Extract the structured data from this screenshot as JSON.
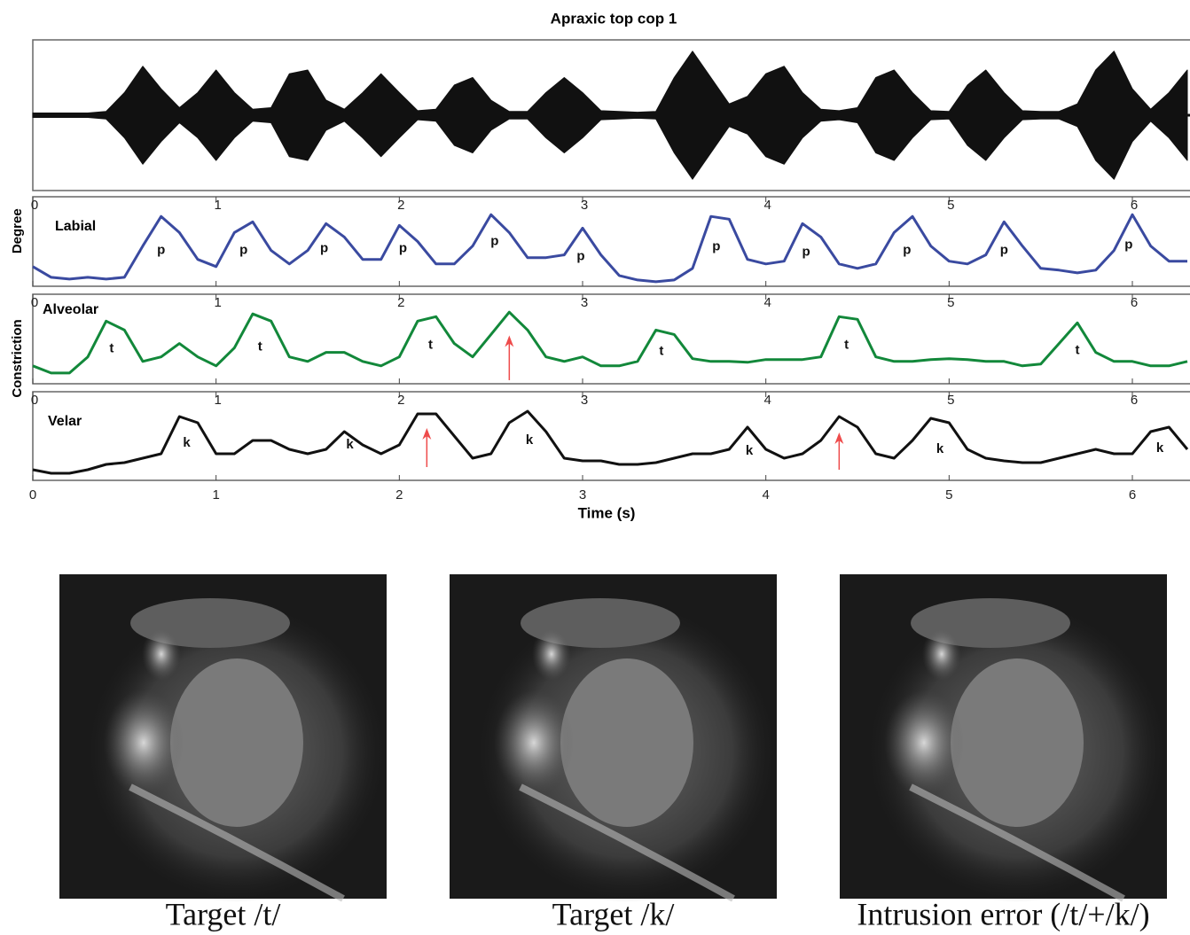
{
  "chart_data": [
    {
      "type": "waveform",
      "title": "Apraxic top cop 1",
      "color": "#111111",
      "xlim": [
        0,
        6.31
      ],
      "ylim": [
        -1,
        1
      ],
      "x": [
        0,
        0.1,
        0.2,
        0.3,
        0.4,
        0.5,
        0.6,
        0.7,
        0.8,
        0.9,
        1,
        1.1,
        1.2,
        1.3,
        1.4,
        1.5,
        1.6,
        1.7,
        1.8,
        1.9,
        2,
        2.1,
        2.2,
        2.3,
        2.4,
        2.5,
        2.6,
        2.7,
        2.8,
        2.9,
        3,
        3.1,
        3.2,
        3.3,
        3.4,
        3.5,
        3.6,
        3.7,
        3.8,
        3.9,
        4,
        4.1,
        4.2,
        4.3,
        4.4,
        4.5,
        4.6,
        4.7,
        4.8,
        4.9,
        5,
        5.1,
        5.2,
        5.3,
        5.4,
        5.5,
        5.6,
        5.7,
        5.8,
        5.9,
        6,
        6.1,
        6.2,
        6.3
      ],
      "values": [
        0.03,
        0.03,
        0.03,
        0.03,
        0.05,
        0.3,
        0.65,
        0.35,
        0.1,
        0.3,
        0.6,
        0.3,
        0.08,
        0.1,
        0.55,
        0.6,
        0.2,
        0.08,
        0.3,
        0.55,
        0.3,
        0.06,
        0.08,
        0.4,
        0.5,
        0.2,
        0.05,
        0.05,
        0.3,
        0.5,
        0.3,
        0.06,
        0.05,
        0.04,
        0.05,
        0.5,
        0.85,
        0.5,
        0.15,
        0.25,
        0.55,
        0.65,
        0.3,
        0.08,
        0.06,
        0.1,
        0.5,
        0.6,
        0.3,
        0.06,
        0.05,
        0.4,
        0.6,
        0.3,
        0.06,
        0.05,
        0.05,
        0.15,
        0.6,
        0.85,
        0.35,
        0.08,
        0.3,
        0.6
      ]
    },
    {
      "type": "line",
      "label": "Labial",
      "color": "#3a4aa0",
      "xlim": [
        0,
        6.31
      ],
      "ylim": [
        0,
        1
      ],
      "xticks": [
        0,
        1,
        2,
        3,
        4,
        5,
        6
      ],
      "x": [
        0,
        0.1,
        0.2,
        0.3,
        0.4,
        0.5,
        0.6,
        0.7,
        0.8,
        0.9,
        1,
        1.1,
        1.2,
        1.3,
        1.4,
        1.5,
        1.6,
        1.7,
        1.8,
        1.9,
        2,
        2.1,
        2.2,
        2.3,
        2.4,
        2.5,
        2.6,
        2.7,
        2.8,
        2.9,
        3,
        3.1,
        3.2,
        3.3,
        3.4,
        3.5,
        3.6,
        3.7,
        3.8,
        3.9,
        4,
        4.1,
        4.2,
        4.3,
        4.4,
        4.5,
        4.6,
        4.7,
        4.8,
        4.9,
        5,
        5.1,
        5.2,
        5.3,
        5.4,
        5.5,
        5.6,
        5.7,
        5.8,
        5.9,
        6,
        6.1,
        6.2,
        6.3
      ],
      "values": [
        0.22,
        0.1,
        0.08,
        0.1,
        0.08,
        0.1,
        0.45,
        0.78,
        0.6,
        0.3,
        0.22,
        0.6,
        0.72,
        0.4,
        0.25,
        0.4,
        0.7,
        0.55,
        0.3,
        0.3,
        0.68,
        0.5,
        0.25,
        0.25,
        0.45,
        0.8,
        0.6,
        0.32,
        0.32,
        0.35,
        0.65,
        0.35,
        0.12,
        0.07,
        0.05,
        0.07,
        0.2,
        0.78,
        0.75,
        0.3,
        0.25,
        0.28,
        0.7,
        0.55,
        0.25,
        0.2,
        0.25,
        0.6,
        0.78,
        0.45,
        0.28,
        0.25,
        0.35,
        0.72,
        0.45,
        0.2,
        0.18,
        0.15,
        0.18,
        0.4,
        0.8,
        0.45,
        0.28,
        0.28
      ],
      "annotations": [
        {
          "text": "p",
          "x": 0.7,
          "y": 0.4
        },
        {
          "text": "p",
          "x": 1.15,
          "y": 0.4
        },
        {
          "text": "p",
          "x": 1.59,
          "y": 0.42
        },
        {
          "text": "p",
          "x": 2.02,
          "y": 0.42
        },
        {
          "text": "p",
          "x": 2.52,
          "y": 0.5
        },
        {
          "text": "p",
          "x": 2.99,
          "y": 0.33
        },
        {
          "text": "p",
          "x": 3.73,
          "y": 0.44
        },
        {
          "text": "p",
          "x": 4.22,
          "y": 0.38
        },
        {
          "text": "p",
          "x": 4.77,
          "y": 0.4
        },
        {
          "text": "p",
          "x": 5.3,
          "y": 0.4
        },
        {
          "text": "p",
          "x": 5.98,
          "y": 0.46
        }
      ]
    },
    {
      "type": "line",
      "label": "Alveolar",
      "ylabel": "Constriction Degree",
      "color": "#12883a",
      "xlim": [
        0,
        6.31
      ],
      "ylim": [
        0,
        1
      ],
      "xticks": [
        0,
        1,
        2,
        3,
        4,
        5,
        6
      ],
      "x": [
        0,
        0.1,
        0.2,
        0.3,
        0.4,
        0.5,
        0.6,
        0.7,
        0.8,
        0.9,
        1,
        1.1,
        1.2,
        1.3,
        1.4,
        1.5,
        1.6,
        1.7,
        1.8,
        1.9,
        2,
        2.1,
        2.2,
        2.3,
        2.4,
        2.5,
        2.6,
        2.7,
        2.8,
        2.9,
        3,
        3.1,
        3.2,
        3.3,
        3.4,
        3.5,
        3.6,
        3.7,
        3.8,
        3.9,
        4,
        4.1,
        4.2,
        4.3,
        4.4,
        4.5,
        4.6,
        4.7,
        4.8,
        4.9,
        5,
        5.1,
        5.2,
        5.3,
        5.4,
        5.5,
        5.6,
        5.7,
        5.8,
        5.9,
        6,
        6.1,
        6.2,
        6.3
      ],
      "values": [
        0.2,
        0.12,
        0.12,
        0.3,
        0.7,
        0.6,
        0.25,
        0.3,
        0.45,
        0.3,
        0.2,
        0.4,
        0.78,
        0.7,
        0.3,
        0.25,
        0.35,
        0.35,
        0.25,
        0.2,
        0.3,
        0.7,
        0.75,
        0.45,
        0.3,
        0.55,
        0.8,
        0.6,
        0.3,
        0.25,
        0.3,
        0.2,
        0.2,
        0.25,
        0.6,
        0.55,
        0.28,
        0.25,
        0.25,
        0.24,
        0.27,
        0.27,
        0.27,
        0.3,
        0.75,
        0.72,
        0.3,
        0.25,
        0.25,
        0.27,
        0.28,
        0.27,
        0.25,
        0.25,
        0.2,
        0.22,
        0.45,
        0.68,
        0.35,
        0.25,
        0.25,
        0.2,
        0.2,
        0.25
      ],
      "annotations": [
        {
          "text": "t",
          "x": 0.43,
          "y": 0.39
        },
        {
          "text": "t",
          "x": 1.24,
          "y": 0.41
        },
        {
          "text": "t",
          "x": 2.17,
          "y": 0.43
        },
        {
          "text": "t",
          "x": 3.43,
          "y": 0.36
        },
        {
          "text": "t",
          "x": 4.44,
          "y": 0.43
        },
        {
          "text": "t",
          "x": 5.7,
          "y": 0.37
        }
      ],
      "arrow_color": "#ee4b4b",
      "arrows": [
        {
          "x": 2.6,
          "from": 0.04,
          "to": 0.54
        }
      ]
    },
    {
      "type": "line",
      "label": "Velar",
      "xlabel": "Time (s)",
      "color": "#111111",
      "xlim": [
        0,
        6.31
      ],
      "ylim": [
        0,
        1
      ],
      "xticks": [
        0,
        1,
        2,
        3,
        4,
        5,
        6
      ],
      "x": [
        0,
        0.1,
        0.2,
        0.3,
        0.4,
        0.5,
        0.6,
        0.7,
        0.8,
        0.9,
        1,
        1.1,
        1.2,
        1.3,
        1.4,
        1.5,
        1.6,
        1.7,
        1.8,
        1.9,
        2,
        2.1,
        2.2,
        2.3,
        2.4,
        2.5,
        2.6,
        2.7,
        2.8,
        2.9,
        3,
        3.1,
        3.2,
        3.3,
        3.4,
        3.5,
        3.6,
        3.7,
        3.8,
        3.9,
        4,
        4.1,
        4.2,
        4.3,
        4.4,
        4.5,
        4.6,
        4.7,
        4.8,
        4.9,
        5,
        5.1,
        5.2,
        5.3,
        5.4,
        5.5,
        5.6,
        5.7,
        5.8,
        5.9,
        6,
        6.1,
        6.2,
        6.3
      ],
      "values": [
        0.12,
        0.08,
        0.08,
        0.12,
        0.18,
        0.2,
        0.25,
        0.3,
        0.72,
        0.65,
        0.3,
        0.3,
        0.45,
        0.45,
        0.35,
        0.3,
        0.35,
        0.55,
        0.4,
        0.3,
        0.4,
        0.75,
        0.75,
        0.5,
        0.25,
        0.3,
        0.65,
        0.78,
        0.55,
        0.25,
        0.22,
        0.22,
        0.18,
        0.18,
        0.2,
        0.25,
        0.3,
        0.3,
        0.35,
        0.6,
        0.35,
        0.25,
        0.3,
        0.45,
        0.72,
        0.6,
        0.3,
        0.25,
        0.45,
        0.7,
        0.65,
        0.35,
        0.25,
        0.22,
        0.2,
        0.2,
        0.25,
        0.3,
        0.35,
        0.3,
        0.3,
        0.55,
        0.6,
        0.35
      ],
      "annotations": [
        {
          "text": "k",
          "x": 0.84,
          "y": 0.42
        },
        {
          "text": "k",
          "x": 1.73,
          "y": 0.4
        },
        {
          "text": "k",
          "x": 2.71,
          "y": 0.45
        },
        {
          "text": "k",
          "x": 3.91,
          "y": 0.33
        },
        {
          "text": "k",
          "x": 4.95,
          "y": 0.35
        },
        {
          "text": "k",
          "x": 6.15,
          "y": 0.36
        }
      ],
      "arrow_color": "#ee4b4b",
      "arrows": [
        {
          "x": 2.15,
          "from": 0.15,
          "to": 0.59
        },
        {
          "x": 4.4,
          "from": 0.12,
          "to": 0.54
        }
      ]
    }
  ],
  "images": [
    {
      "caption": "Target /t/"
    },
    {
      "caption": "Target /k/"
    },
    {
      "caption": "Intrusion error (/t/+/k/)"
    }
  ]
}
